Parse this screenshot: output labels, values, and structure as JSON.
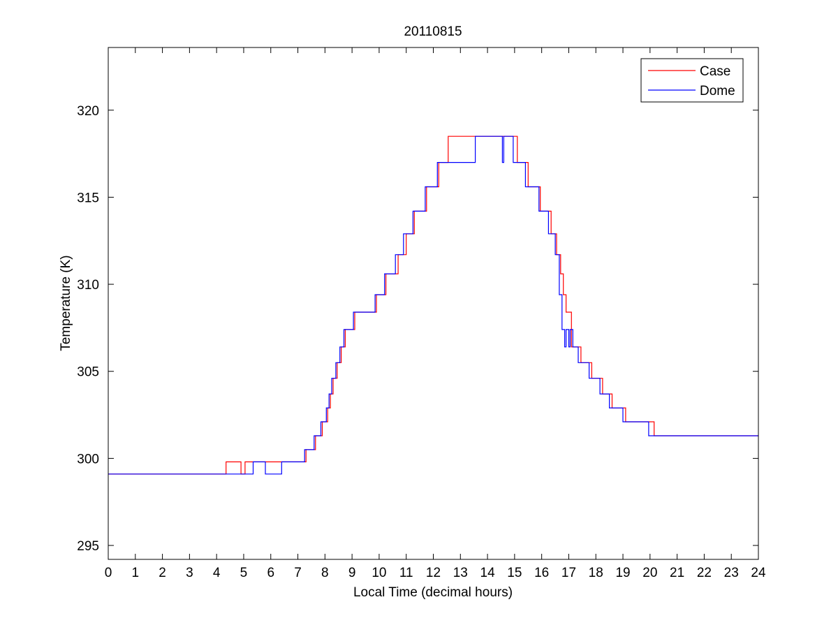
{
  "chart_data": {
    "type": "line",
    "title": "20110815",
    "xlabel": "Local Time (decimal hours)",
    "ylabel": "Temperature (K)",
    "xlim": [
      0,
      24
    ],
    "ylim": [
      294.2,
      323.6
    ],
    "xticks": [
      0,
      1,
      2,
      3,
      4,
      5,
      6,
      7,
      8,
      9,
      10,
      11,
      12,
      13,
      14,
      15,
      16,
      17,
      18,
      19,
      20,
      21,
      22,
      23,
      24
    ],
    "yticks": [
      295,
      300,
      305,
      310,
      315,
      320
    ],
    "grid": false,
    "legend_position": "top-right",
    "series": [
      {
        "name": "Case",
        "color": "#ff0000",
        "x": [
          0,
          4.35,
          4.35,
          4.9,
          4.9,
          5.05,
          5.05,
          7.3,
          7.3,
          7.65,
          7.65,
          7.9,
          7.9,
          8.1,
          8.1,
          8.2,
          8.2,
          8.3,
          8.3,
          8.45,
          8.45,
          8.6,
          8.6,
          8.75,
          8.75,
          8.9,
          8.9,
          9.0,
          9.0,
          9.1,
          9.1,
          9.9,
          9.9,
          10.25,
          10.25,
          10.7,
          10.7,
          11.0,
          11.0,
          11.3,
          11.3,
          11.75,
          11.75,
          12.2,
          12.2,
          12.55,
          12.55,
          13.3,
          13.3,
          13.55,
          13.55,
          15.1,
          15.1,
          15.5,
          15.5,
          15.95,
          15.95,
          16.35,
          16.35,
          16.55,
          16.55,
          16.7,
          16.7,
          16.8,
          16.8,
          16.9,
          16.9,
          17.1,
          17.1,
          17.45,
          17.45,
          17.85,
          17.85,
          18.25,
          18.25,
          18.6,
          18.6,
          19.1,
          19.1,
          20.15,
          20.15,
          24
        ],
        "y": [
          299.1,
          299.1,
          299.8,
          299.8,
          299.1,
          299.1,
          299.8,
          299.8,
          300.5,
          300.5,
          301.3,
          301.3,
          302.1,
          302.1,
          302.9,
          302.9,
          303.7,
          303.7,
          304.6,
          304.6,
          305.5,
          305.5,
          306.4,
          306.4,
          307.4,
          307.4,
          307.4,
          307.4,
          307.4,
          307.4,
          308.4,
          308.4,
          309.4,
          309.4,
          310.6,
          310.6,
          311.7,
          311.7,
          312.9,
          312.9,
          314.2,
          314.2,
          315.6,
          315.6,
          317.0,
          317.0,
          318.5,
          318.5,
          318.5,
          318.5,
          318.5,
          318.5,
          317.0,
          317.0,
          315.6,
          315.6,
          314.2,
          314.2,
          312.9,
          312.9,
          311.7,
          311.7,
          310.6,
          310.6,
          309.4,
          309.4,
          308.4,
          308.4,
          306.4,
          306.4,
          305.5,
          305.5,
          304.6,
          304.6,
          303.7,
          303.7,
          302.9,
          302.9,
          302.1,
          302.1,
          301.3,
          301.3
        ]
      },
      {
        "name": "Dome",
        "color": "#0000ff",
        "x": [
          0,
          5.35,
          5.35,
          5.8,
          5.8,
          6.4,
          6.4,
          7.25,
          7.25,
          7.6,
          7.6,
          7.85,
          7.85,
          8.05,
          8.05,
          8.15,
          8.15,
          8.25,
          8.25,
          8.4,
          8.4,
          8.55,
          8.55,
          8.7,
          8.7,
          8.85,
          8.85,
          8.95,
          8.95,
          9.05,
          9.05,
          9.85,
          9.85,
          10.2,
          10.2,
          10.6,
          10.6,
          10.9,
          10.9,
          11.25,
          11.25,
          11.7,
          11.7,
          12.15,
          12.15,
          12.5,
          12.5,
          13.55,
          13.55,
          13.65,
          13.65,
          14.55,
          14.55,
          14.6,
          14.6,
          14.95,
          14.95,
          15.0,
          15.0,
          15.4,
          15.4,
          15.9,
          15.9,
          16.25,
          16.25,
          16.5,
          16.5,
          16.65,
          16.65,
          16.75,
          16.75,
          16.85,
          16.85,
          16.9,
          16.9,
          17.0,
          17.0,
          17.05,
          17.05,
          17.15,
          17.15,
          17.35,
          17.35,
          17.75,
          17.75,
          18.15,
          18.15,
          18.5,
          18.5,
          19.0,
          19.0,
          19.95,
          19.95,
          24
        ],
        "y": [
          299.1,
          299.1,
          299.8,
          299.8,
          299.1,
          299.1,
          299.8,
          299.8,
          300.5,
          300.5,
          301.3,
          301.3,
          302.1,
          302.1,
          302.9,
          302.9,
          303.7,
          303.7,
          304.6,
          304.6,
          305.5,
          305.5,
          306.4,
          306.4,
          307.4,
          307.4,
          307.4,
          307.4,
          307.4,
          307.4,
          308.4,
          308.4,
          309.4,
          309.4,
          310.6,
          310.6,
          311.7,
          311.7,
          312.9,
          312.9,
          314.2,
          314.2,
          315.6,
          315.6,
          317.0,
          317.0,
          317.0,
          317.0,
          318.5,
          318.5,
          318.5,
          318.5,
          317.0,
          317.0,
          318.5,
          318.5,
          317.0,
          317.0,
          317.0,
          317.0,
          315.6,
          315.6,
          314.2,
          314.2,
          312.9,
          312.9,
          311.7,
          311.7,
          309.4,
          309.4,
          307.4,
          307.4,
          306.4,
          306.4,
          307.4,
          307.4,
          306.4,
          306.4,
          307.4,
          307.4,
          306.4,
          306.4,
          305.5,
          305.5,
          304.6,
          304.6,
          303.7,
          303.7,
          302.9,
          302.9,
          302.1,
          302.1,
          301.3,
          301.3
        ]
      }
    ]
  }
}
